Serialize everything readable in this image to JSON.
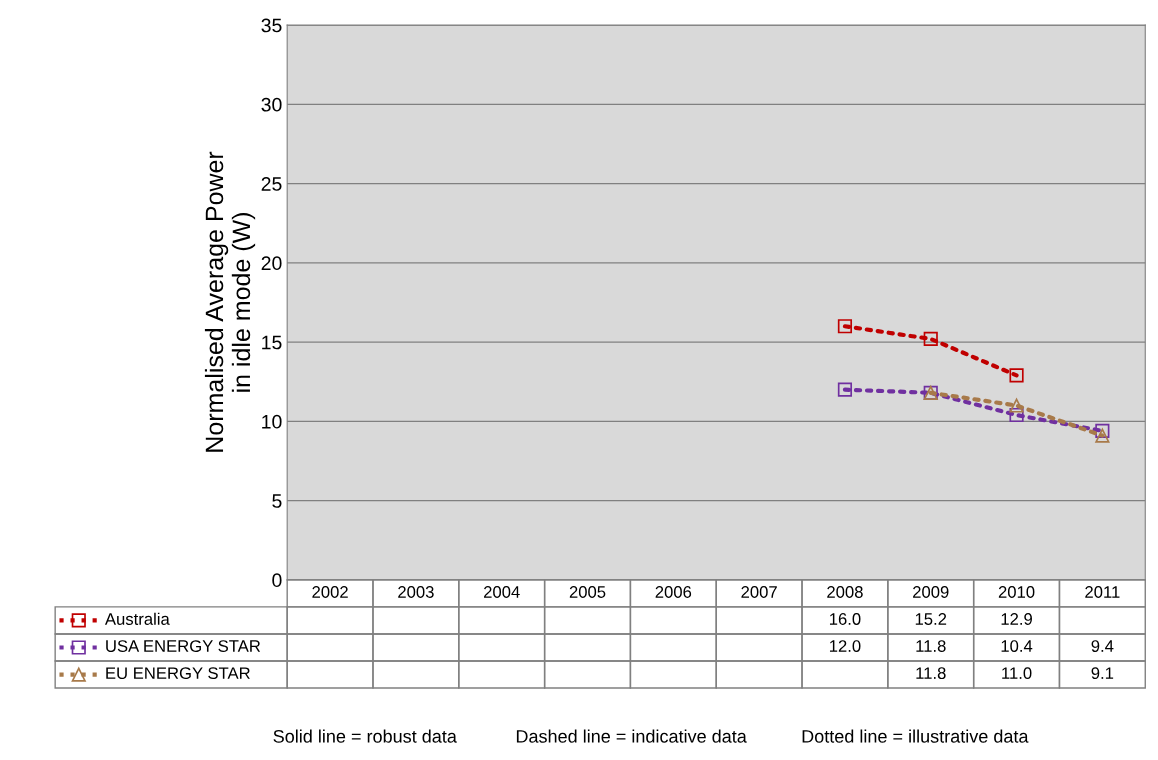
{
  "chart_data": {
    "type": "line",
    "ylabel": "Normalised Average Power\nin idle mode (W)",
    "categories": [
      "2002",
      "2003",
      "2004",
      "2005",
      "2006",
      "2007",
      "2008",
      "2009",
      "2010",
      "2011"
    ],
    "ylim": [
      0,
      35
    ],
    "yticks": [
      0,
      5,
      10,
      15,
      20,
      25,
      30,
      35
    ],
    "grid": "y",
    "legend": "bottom",
    "line_style": "dotted",
    "series": [
      {
        "name": "Australia",
        "color": "#c00000",
        "marker": "square",
        "values": [
          null,
          null,
          null,
          null,
          null,
          null,
          16.0,
          15.2,
          12.9,
          null
        ],
        "value_labels": [
          null,
          null,
          null,
          null,
          null,
          null,
          "16.0",
          "15.2",
          "12.9",
          null
        ]
      },
      {
        "name": "USA ENERGY STAR",
        "color": "#7030a0",
        "marker": "square",
        "values": [
          null,
          null,
          null,
          null,
          null,
          null,
          12.0,
          11.8,
          10.4,
          9.4
        ],
        "value_labels": [
          null,
          null,
          null,
          null,
          null,
          null,
          "12.0",
          "11.8",
          "10.4",
          "9.4"
        ]
      },
      {
        "name": "EU ENERGY STAR",
        "color": "#a87a4a",
        "marker": "triangle",
        "values": [
          null,
          null,
          null,
          null,
          null,
          null,
          null,
          11.8,
          11.0,
          9.1
        ],
        "value_labels": [
          null,
          null,
          null,
          null,
          null,
          null,
          null,
          "11.8",
          "11.0",
          "9.1"
        ]
      }
    ],
    "annotations": [
      "Solid line = robust data",
      "Dashed line = indicative data",
      "Dotted line = illustrative data"
    ]
  }
}
